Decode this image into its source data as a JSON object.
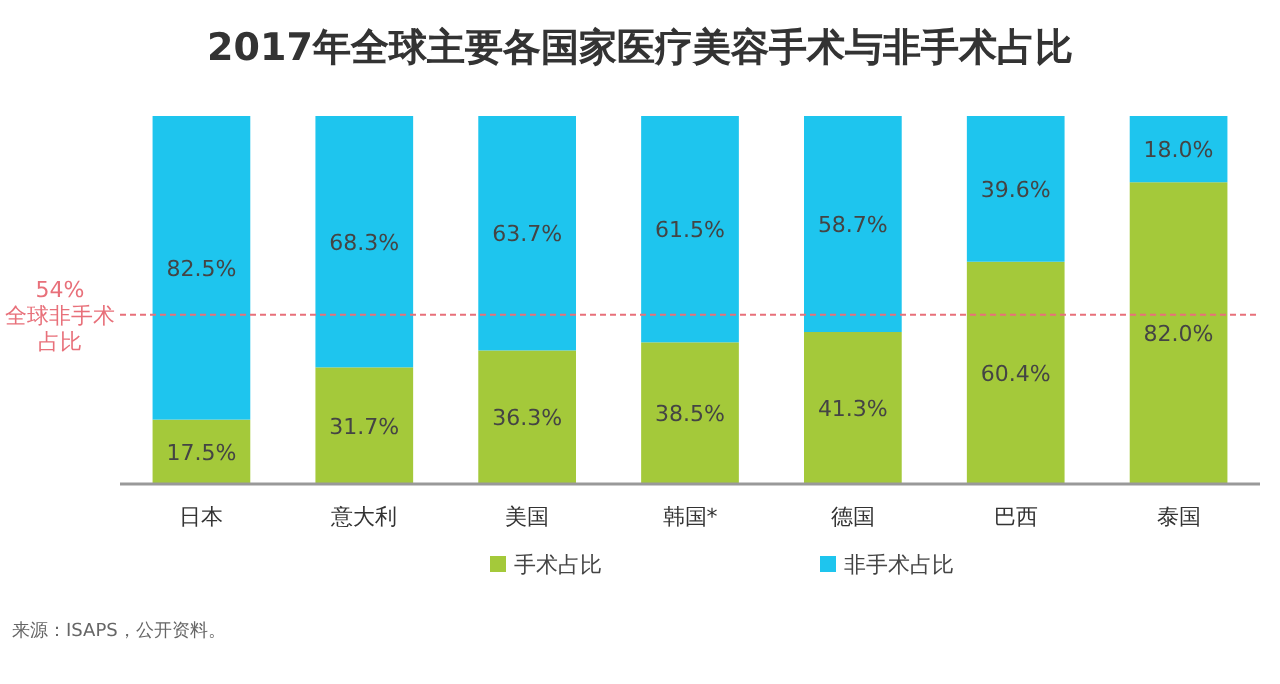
{
  "chart_data": {
    "type": "bar",
    "title": "2017年全球主要各国家医疗美容手术与非手术占比",
    "categories": [
      "日本",
      "意大利",
      "美国",
      "韩国*",
      "德国",
      "巴西",
      "泰国"
    ],
    "stacked": true,
    "data_labels": true,
    "legend": "bottom",
    "series": [
      {
        "name": "手术占比",
        "color": "#a4c93a",
        "values": [
          17.5,
          31.7,
          36.3,
          38.5,
          41.3,
          60.4,
          82.0
        ],
        "value_labels": [
          "17.5%",
          "31.7%",
          "36.3%",
          "38.5%",
          "41.3%",
          "60.4%",
          "82.0%"
        ]
      },
      {
        "name": "非手术占比",
        "color": "#1ec5ee",
        "values": [
          82.5,
          68.3,
          63.7,
          61.5,
          58.7,
          39.6,
          18.0
        ],
        "value_labels": [
          "82.5%",
          "68.3%",
          "63.7%",
          "61.5%",
          "58.7%",
          "39.6%",
          "18.0%"
        ]
      }
    ],
    "ref_lines": [
      {
        "axis": "y",
        "value": 46,
        "label": "54%全球非手术占比",
        "color": "#e8707a",
        "line_style": "dashed"
      }
    ],
    "annotations": [
      "来源：ISAPS，公开资料。"
    ]
  }
}
